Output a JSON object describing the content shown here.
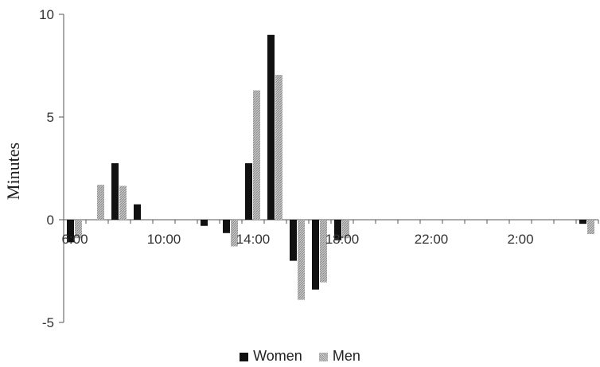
{
  "chart_data": {
    "type": "bar",
    "ylabel": "Minutes",
    "ylim": [
      -5,
      10
    ],
    "yticks": [
      10,
      5,
      0,
      -5
    ],
    "grid": false,
    "legend_position": "bottom",
    "x_tick_labels": [
      "6:00",
      "10:00",
      "14:00",
      "18:00",
      "22:00",
      "2:00"
    ],
    "series": [
      {
        "name": "Women",
        "color": "#111111",
        "values": [
          -1.1,
          0,
          2.75,
          0.75,
          0,
          0,
          -0.3,
          -0.65,
          2.75,
          9.0,
          -2.0,
          -3.4,
          -1.0,
          0,
          0,
          0,
          0,
          0,
          0,
          0,
          0,
          0,
          0,
          -0.2
        ]
      },
      {
        "name": "Men",
        "color": "#b0b0b0",
        "values": [
          -0.9,
          1.7,
          1.65,
          0,
          0,
          0,
          0,
          -1.3,
          6.3,
          7.05,
          -3.9,
          -3.05,
          -0.9,
          0,
          0,
          0,
          0,
          0,
          0,
          0,
          0,
          0,
          0,
          -0.7
        ]
      }
    ]
  },
  "legend": {
    "women_label": "Women",
    "men_label": "Men"
  }
}
